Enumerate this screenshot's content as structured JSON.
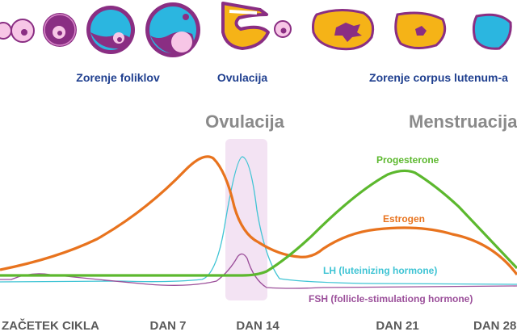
{
  "stages": {
    "follicle": "Zorenje foliklov",
    "ovulation": "Ovulacija",
    "corpus_luteum": "Zorenje corpus lutenum-a"
  },
  "events": {
    "ovulation": "Ovulacija",
    "menstruation": "Menstruacija"
  },
  "days": {
    "start": "ZAČETEK CIKLA",
    "d7": "DAN 7",
    "d14": "DAN 14",
    "d21": "DAN 21",
    "d28": "DAN 28"
  },
  "hormones": {
    "progesterone": {
      "label": "Progesterone",
      "color": "#5cb82e"
    },
    "estrogen": {
      "label": "Estrogen",
      "color": "#e8731e"
    },
    "lh": {
      "label": "LH (luteinizing hormone)",
      "color": "#3fc4d4"
    },
    "fsh": {
      "label": "FSH (follicle-stimulationg hormone)",
      "color": "#9b4f9a"
    }
  },
  "colors": {
    "follicle_purple": "#8a2e83",
    "follicle_cyan": "#2bb6e0",
    "pink": "#f7c6e6",
    "corpus_yellow": "#f5b317",
    "ovulation_band": "#f3e3f3"
  }
}
